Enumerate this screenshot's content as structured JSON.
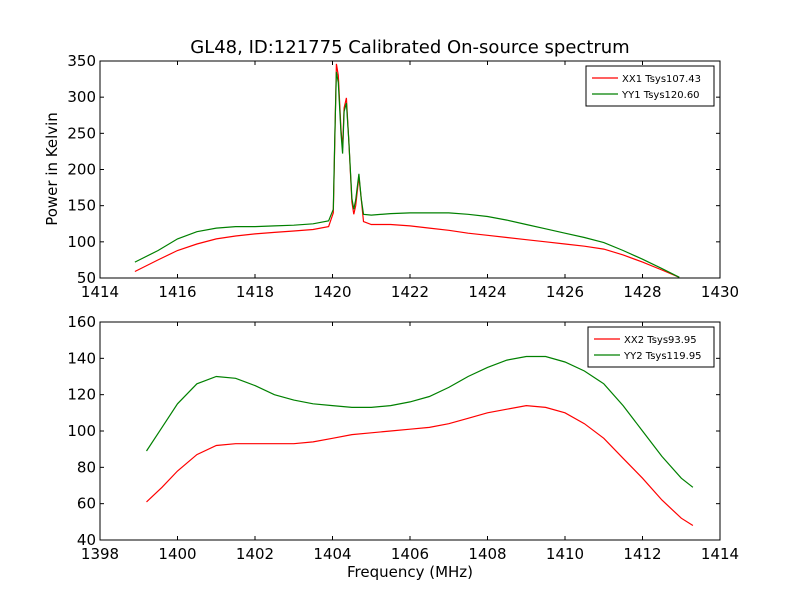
{
  "figure": {
    "title": "GL48, ID:121775 Calibrated On-source spectrum",
    "ylabel": "Power in Kelvin",
    "xlabel": "Frequency (MHz)"
  },
  "chart_data": [
    {
      "type": "line",
      "xlim": [
        1414,
        1430
      ],
      "ylim": [
        50,
        350
      ],
      "xticks": [
        1414,
        1416,
        1418,
        1420,
        1422,
        1424,
        1426,
        1428,
        1430
      ],
      "yticks": [
        50,
        100,
        150,
        200,
        250,
        300,
        350
      ],
      "legend_position": "top-right",
      "grid": false,
      "series": [
        {
          "name": "XX1 Tsys107.43",
          "color": "#ff0000",
          "points": [
            [
              1414.9,
              59
            ],
            [
              1415.5,
              75
            ],
            [
              1416,
              88
            ],
            [
              1416.5,
              97
            ],
            [
              1417,
              104
            ],
            [
              1417.5,
              108
            ],
            [
              1418,
              111
            ],
            [
              1418.5,
              113
            ],
            [
              1419,
              115
            ],
            [
              1419.5,
              117
            ],
            [
              1419.9,
              121
            ],
            [
              1420.02,
              140
            ],
            [
              1420.06,
              240
            ],
            [
              1420.1,
              346
            ],
            [
              1420.15,
              330
            ],
            [
              1420.22,
              255
            ],
            [
              1420.26,
              230
            ],
            [
              1420.3,
              285
            ],
            [
              1420.36,
              299
            ],
            [
              1420.42,
              240
            ],
            [
              1420.5,
              155
            ],
            [
              1420.55,
              138
            ],
            [
              1420.6,
              150
            ],
            [
              1420.68,
              190
            ],
            [
              1420.74,
              160
            ],
            [
              1420.8,
              128
            ],
            [
              1421,
              124
            ],
            [
              1421.5,
              124
            ],
            [
              1422,
              122
            ],
            [
              1422.5,
              119
            ],
            [
              1423,
              116
            ],
            [
              1423.5,
              112
            ],
            [
              1424,
              109
            ],
            [
              1424.5,
              106
            ],
            [
              1425,
              103
            ],
            [
              1425.5,
              100
            ],
            [
              1426,
              97
            ],
            [
              1426.5,
              94
            ],
            [
              1427,
              90
            ],
            [
              1427.5,
              82
            ],
            [
              1428,
              72
            ],
            [
              1428.5,
              61
            ],
            [
              1428.95,
              51
            ]
          ]
        },
        {
          "name": "YY1 Tsys120.60",
          "color": "#008000",
          "points": [
            [
              1414.9,
              72
            ],
            [
              1415.5,
              88
            ],
            [
              1416,
              104
            ],
            [
              1416.5,
              114
            ],
            [
              1417,
              119
            ],
            [
              1417.5,
              121
            ],
            [
              1418,
              121
            ],
            [
              1418.5,
              122
            ],
            [
              1419,
              123
            ],
            [
              1419.5,
              125
            ],
            [
              1419.9,
              129
            ],
            [
              1420.02,
              145
            ],
            [
              1420.06,
              245
            ],
            [
              1420.1,
              335
            ],
            [
              1420.15,
              320
            ],
            [
              1420.22,
              250
            ],
            [
              1420.26,
              222
            ],
            [
              1420.3,
              280
            ],
            [
              1420.36,
              292
            ],
            [
              1420.42,
              240
            ],
            [
              1420.5,
              160
            ],
            [
              1420.55,
              145
            ],
            [
              1420.6,
              158
            ],
            [
              1420.68,
              194
            ],
            [
              1420.74,
              160
            ],
            [
              1420.8,
              138
            ],
            [
              1421,
              137
            ],
            [
              1421.5,
              139
            ],
            [
              1422,
              140
            ],
            [
              1422.5,
              140
            ],
            [
              1423,
              140
            ],
            [
              1423.5,
              138
            ],
            [
              1424,
              135
            ],
            [
              1424.5,
              130
            ],
            [
              1425,
              124
            ],
            [
              1425.5,
              118
            ],
            [
              1426,
              112
            ],
            [
              1426.5,
              106
            ],
            [
              1427,
              99
            ],
            [
              1427.5,
              88
            ],
            [
              1428,
              76
            ],
            [
              1428.5,
              63
            ],
            [
              1428.95,
              51
            ]
          ]
        }
      ]
    },
    {
      "type": "line",
      "xlim": [
        1398,
        1414
      ],
      "ylim": [
        40,
        160
      ],
      "xticks": [
        1398,
        1400,
        1402,
        1404,
        1406,
        1408,
        1410,
        1412,
        1414
      ],
      "yticks": [
        40,
        60,
        80,
        100,
        120,
        140,
        160
      ],
      "legend_position": "top-right",
      "grid": false,
      "series": [
        {
          "name": "XX2 Tsys93.95",
          "color": "#ff0000",
          "points": [
            [
              1399.2,
              61
            ],
            [
              1399.6,
              69
            ],
            [
              1400,
              78
            ],
            [
              1400.5,
              87
            ],
            [
              1401,
              92
            ],
            [
              1401.5,
              93
            ],
            [
              1402,
              93
            ],
            [
              1402.5,
              93
            ],
            [
              1403,
              93
            ],
            [
              1403.5,
              94
            ],
            [
              1404,
              96
            ],
            [
              1404.5,
              98
            ],
            [
              1405,
              99
            ],
            [
              1405.5,
              100
            ],
            [
              1406,
              101
            ],
            [
              1406.5,
              102
            ],
            [
              1407,
              104
            ],
            [
              1407.5,
              107
            ],
            [
              1408,
              110
            ],
            [
              1408.5,
              112
            ],
            [
              1409,
              114
            ],
            [
              1409.5,
              113
            ],
            [
              1410,
              110
            ],
            [
              1410.5,
              104
            ],
            [
              1411,
              96
            ],
            [
              1411.5,
              85
            ],
            [
              1412,
              74
            ],
            [
              1412.5,
              62
            ],
            [
              1413,
              52
            ],
            [
              1413.3,
              48
            ]
          ]
        },
        {
          "name": "YY2 Tsys119.95",
          "color": "#008000",
          "points": [
            [
              1399.2,
              89
            ],
            [
              1399.6,
              102
            ],
            [
              1400,
              115
            ],
            [
              1400.5,
              126
            ],
            [
              1401,
              130
            ],
            [
              1401.5,
              129
            ],
            [
              1402,
              125
            ],
            [
              1402.5,
              120
            ],
            [
              1403,
              117
            ],
            [
              1403.5,
              115
            ],
            [
              1404,
              114
            ],
            [
              1404.5,
              113
            ],
            [
              1405,
              113
            ],
            [
              1405.5,
              114
            ],
            [
              1406,
              116
            ],
            [
              1406.5,
              119
            ],
            [
              1407,
              124
            ],
            [
              1407.5,
              130
            ],
            [
              1408,
              135
            ],
            [
              1408.5,
              139
            ],
            [
              1409,
              141
            ],
            [
              1409.5,
              141
            ],
            [
              1410,
              138
            ],
            [
              1410.5,
              133
            ],
            [
              1411,
              126
            ],
            [
              1411.5,
              114
            ],
            [
              1412,
              100
            ],
            [
              1412.5,
              86
            ],
            [
              1413,
              74
            ],
            [
              1413.3,
              69
            ]
          ]
        }
      ]
    }
  ]
}
